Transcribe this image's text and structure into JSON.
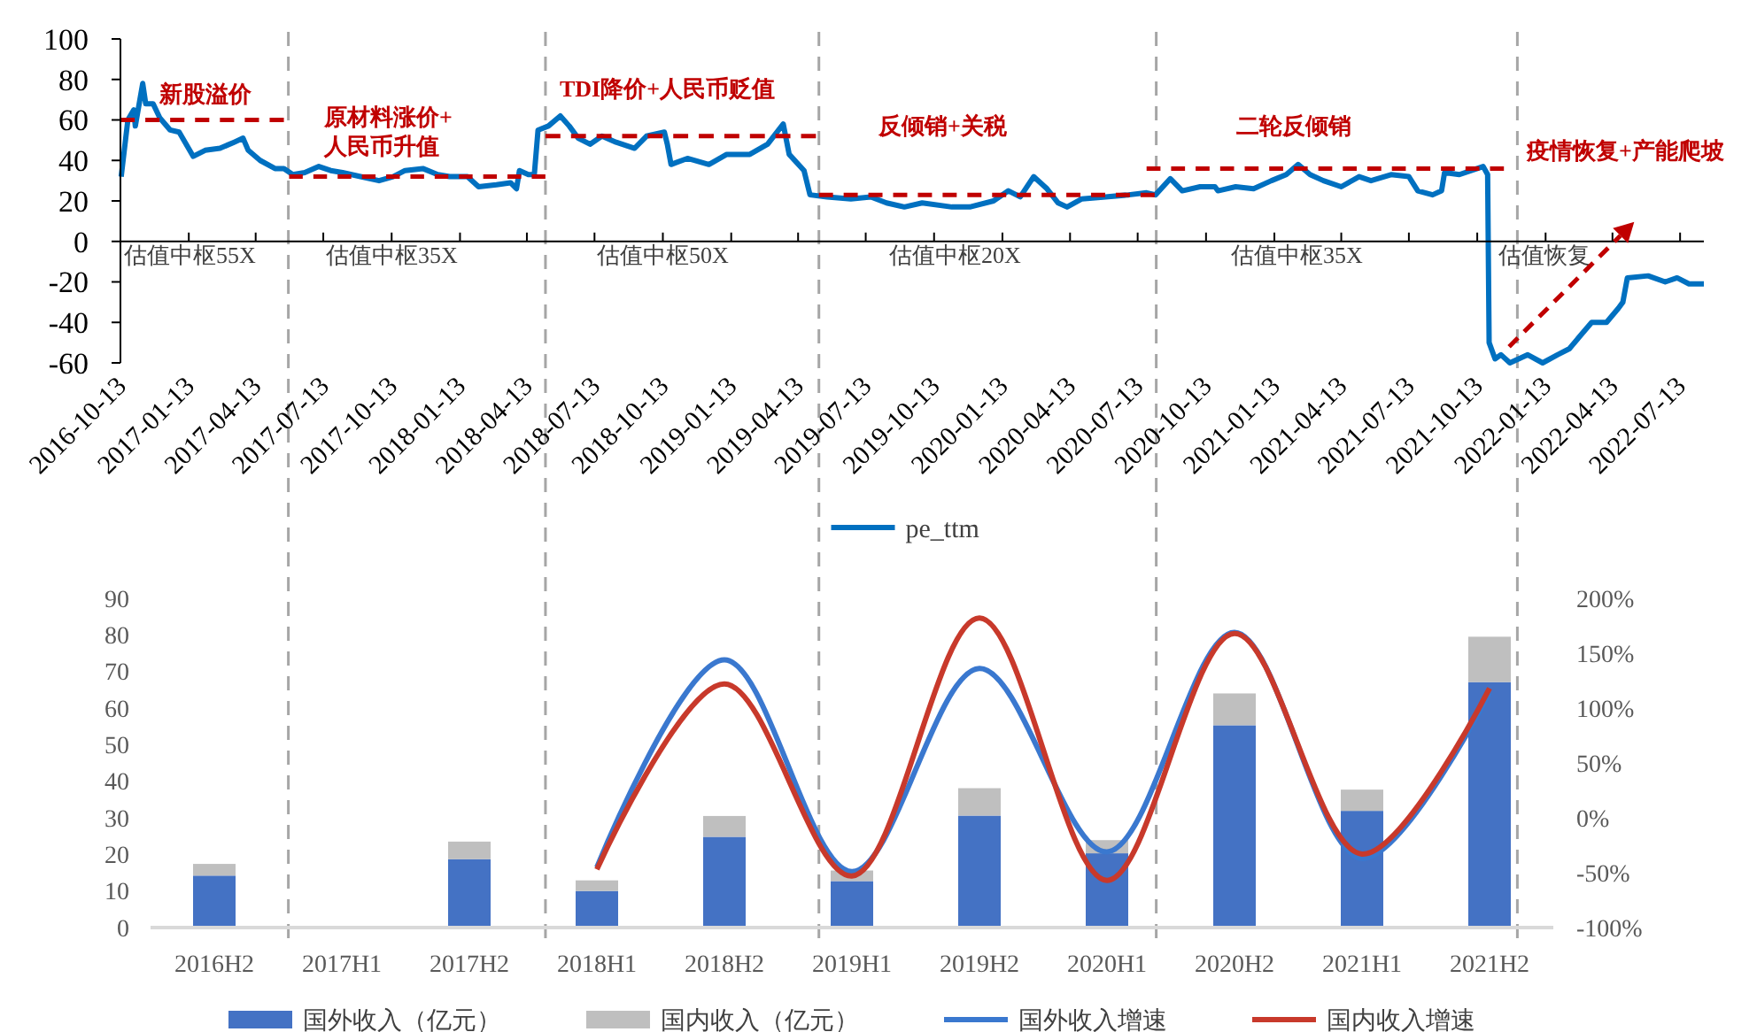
{
  "chart_data": [
    {
      "type": "line",
      "xlim": [
        "2016-10-13",
        "2022-08-14"
      ],
      "xticks": [
        "2016-10-13",
        "2017-01-13",
        "2017-04-13",
        "2017-07-13",
        "2017-10-13",
        "2018-01-13",
        "2018-04-13",
        "2018-07-13",
        "2018-10-13",
        "2019-01-13",
        "2019-04-13",
        "2019-07-13",
        "2019-10-13",
        "2020-01-13",
        "2020-04-13",
        "2020-07-13",
        "2020-10-13",
        "2021-01-13",
        "2021-04-13",
        "2021-07-13",
        "2021-10-13",
        "2022-01-13",
        "2022-04-13",
        "2022-07-13"
      ],
      "ylim": [
        -60,
        100
      ],
      "yticks": [
        -60,
        -40,
        -20,
        0,
        20,
        40,
        60,
        80,
        100
      ],
      "legend": "bottom",
      "series": [
        {
          "name": "pe_ttm",
          "color": "#0070c0",
          "x": [
            "2016-10-14",
            "2016-10-23",
            "2016-10-31",
            "2016-11-02",
            "2016-11-12",
            "2016-11-16",
            "2016-11-26",
            "2016-12-05",
            "2016-12-19",
            "2016-12-31",
            "2017-01-19",
            "2017-02-04",
            "2017-02-24",
            "2017-03-15",
            "2017-03-27",
            "2017-04-03",
            "2017-04-19",
            "2017-05-09",
            "2017-05-21",
            "2017-06-02",
            "2017-06-18",
            "2017-07-07",
            "2017-07-23",
            "2017-08-08",
            "2017-09-01",
            "2017-09-26",
            "2017-10-15",
            "2017-10-31",
            "2017-11-24",
            "2017-12-14",
            "2017-12-30",
            "2018-01-23",
            "2018-02-07",
            "2018-03-03",
            "2018-03-22",
            "2018-03-30",
            "2018-04-03",
            "2018-04-15",
            "2018-04-23",
            "2018-04-28",
            "2018-05-12",
            "2018-05-28",
            "2018-06-09",
            "2018-06-21",
            "2018-07-07",
            "2018-07-23",
            "2018-08-11",
            "2018-09-05",
            "2018-09-21",
            "2018-10-15",
            "2018-10-19",
            "2018-10-24",
            "2018-11-15",
            "2018-12-14",
            "2019-01-07",
            "2019-02-07",
            "2019-03-03",
            "2019-03-24",
            "2019-04-01",
            "2019-04-21",
            "2019-04-29",
            "2019-05-22",
            "2019-06-23",
            "2019-07-20",
            "2019-08-10",
            "2019-09-03",
            "2019-09-27",
            "2019-11-06",
            "2019-11-30",
            "2020-01-01",
            "2020-01-21",
            "2020-02-06",
            "2020-02-24",
            "2020-03-13",
            "2020-03-28",
            "2020-04-09",
            "2020-04-29",
            "2020-05-31",
            "2020-07-01",
            "2020-07-25",
            "2020-08-06",
            "2020-08-26",
            "2020-09-11",
            "2020-10-05",
            "2020-10-25",
            "2020-10-29",
            "2020-11-22",
            "2020-12-16",
            "2021-01-09",
            "2021-01-29",
            "2021-02-14",
            "2021-03-02",
            "2021-03-20",
            "2021-04-13",
            "2021-05-07",
            "2021-05-23",
            "2021-06-19",
            "2021-07-13",
            "2021-07-25",
            "2021-08-14",
            "2021-08-26",
            "2021-08-30",
            "2021-09-19",
            "2021-10-05",
            "2021-10-21",
            "2021-10-27",
            "2021-10-29",
            "2021-11-06",
            "2021-11-14",
            "2021-11-26",
            "2021-12-20",
            "2022-01-09",
            "2022-01-29",
            "2022-02-14",
            "2022-03-02",
            "2022-03-16",
            "2022-04-05",
            "2022-04-21",
            "2022-04-27",
            "2022-05-03",
            "2022-05-31",
            "2022-06-23",
            "2022-07-09",
            "2022-07-25",
            "2022-08-14"
          ],
          "values": [
            32,
            60,
            65,
            57,
            78,
            68,
            68,
            61,
            55,
            54,
            42,
            45,
            46,
            49,
            51,
            45,
            40,
            36,
            36,
            33,
            34,
            37,
            35,
            34,
            32,
            30,
            32,
            35,
            36,
            33,
            32,
            32,
            27,
            28,
            29,
            26,
            35,
            33,
            33,
            55,
            57,
            62,
            57,
            51,
            48,
            52,
            49,
            46,
            52,
            54,
            48,
            38,
            41,
            38,
            43,
            43,
            48,
            58,
            43,
            35,
            23,
            22,
            21,
            22,
            19,
            17,
            19,
            17,
            17,
            20,
            25,
            22,
            32,
            26,
            19,
            17,
            21,
            22,
            23,
            24,
            23,
            31,
            25,
            27,
            27,
            25,
            27,
            26,
            30,
            33,
            38,
            33,
            30,
            27,
            32,
            30,
            33,
            32,
            25,
            23,
            25,
            34,
            33,
            35,
            37,
            33,
            -50,
            -58,
            -56,
            -60,
            -56,
            -60,
            -56,
            -53,
            -46,
            -40,
            -40,
            -33,
            -30,
            -18,
            -17,
            -20,
            -18,
            -21,
            -21
          ]
        },
        {
          "color": "#c00000",
          "line_style": "dashed",
          "x": [
            "2016-10-13",
            "2017-05-21"
          ],
          "values": [
            60,
            60
          ]
        },
        {
          "color": "#c00000",
          "line_style": "dashed",
          "x": [
            "2017-05-28",
            "2018-05-08"
          ],
          "values": [
            32,
            32
          ]
        },
        {
          "color": "#c00000",
          "line_style": "dashed",
          "x": [
            "2018-05-08",
            "2019-05-07"
          ],
          "values": [
            52,
            52
          ]
        },
        {
          "color": "#c00000",
          "line_style": "dashed",
          "x": [
            "2019-05-11",
            "2020-08-05"
          ],
          "values": [
            23,
            23
          ]
        },
        {
          "color": "#c00000",
          "line_style": "dashed",
          "x": [
            "2020-07-25",
            "2021-11-18"
          ],
          "values": [
            36,
            36
          ]
        }
      ],
      "ref_lines": [
        {
          "axis": "x",
          "value": "2017-05-27",
          "color": "#a6a6a6",
          "line_style": "dashed"
        },
        {
          "axis": "x",
          "value": "2018-05-08",
          "color": "#a6a6a6",
          "line_style": "dashed"
        },
        {
          "axis": "x",
          "value": "2019-05-11",
          "color": "#a6a6a6",
          "line_style": "dashed"
        },
        {
          "axis": "x",
          "value": "2020-08-07",
          "color": "#a6a6a6",
          "line_style": "dashed"
        },
        {
          "axis": "x",
          "value": "2021-12-06",
          "color": "#a6a6a6",
          "line_style": "dashed"
        }
      ],
      "annotations": [
        "新股溢价",
        "原材料涨价+\n人民币升值",
        "TDI降价+人民币贬值",
        "反倾销+关税",
        "二轮反倾销",
        "疫情恢复+产能爬坡",
        "估值中枢55X",
        "估值中枢35X",
        "估值中枢50X",
        "估值中枢20X",
        "估值中枢35X",
        "估值恢复"
      ]
    },
    {
      "type": "bar",
      "stacked": true,
      "categories": [
        "2016H2",
        "2017H1",
        "2017H2",
        "2018H1",
        "2018H2",
        "2019H1",
        "2019H2",
        "2020H1",
        "2020H2",
        "2021H1",
        "2021H2"
      ],
      "ylim": [
        0,
        90
      ],
      "yticks": [
        0,
        10,
        20,
        30,
        40,
        50,
        60,
        70,
        80,
        90
      ],
      "y2lim": [
        -100,
        200
      ],
      "y2ticks": [
        {
          "value": -100,
          "label": "-100%"
        },
        {
          "value": -50,
          "label": "-50%"
        },
        {
          "value": 0,
          "label": "0%"
        },
        {
          "value": 50,
          "label": "50%"
        },
        {
          "value": 100,
          "label": "100%"
        },
        {
          "value": 150,
          "label": "150%"
        },
        {
          "value": 200,
          "label": "200%"
        }
      ],
      "legend": "bottom",
      "series": [
        {
          "name": "国外收入（亿元）",
          "color": "#4472c4",
          "values": [
            14.2,
            null,
            18.7,
            10,
            24.8,
            12.7,
            30.6,
            20.3,
            55.3,
            31.9,
            67.1
          ]
        },
        {
          "name": "国内收入（亿元）",
          "color": "#bfbfbf",
          "values": [
            3.2,
            null,
            4.8,
            2.9,
            5.7,
            2.9,
            7.5,
            3.6,
            8.7,
            5.8,
            12.4
          ]
        },
        {
          "name": "国外收入增速",
          "type": "line",
          "axis": "y2",
          "color": "#3a78cf",
          "values": [
            null,
            null,
            null,
            -45,
            144,
            -49,
            136,
            -31,
            169,
            -37,
            114
          ]
        },
        {
          "name": "国内收入增速",
          "type": "line",
          "axis": "y2",
          "color": "#c8392b",
          "values": [
            null,
            null,
            null,
            -47,
            122,
            -53,
            182,
            -57,
            168,
            -33,
            118
          ]
        }
      ]
    }
  ]
}
